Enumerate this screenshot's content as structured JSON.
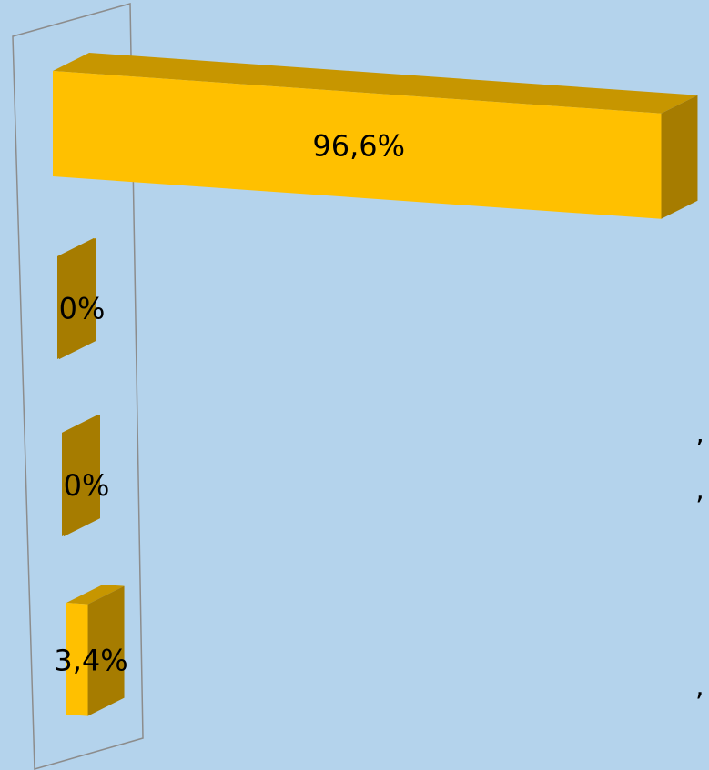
{
  "colors": {
    "background": "#b4d3ec",
    "bar_front": "#ffc000",
    "bar_top": "#c79600",
    "bar_side": "#a67c00",
    "axis_frame": "#8c8c8c",
    "text": "#000000"
  },
  "cut_off_labels": [
    "’",
    "‚",
    ","
  ],
  "chart_data": {
    "type": "bar",
    "orientation": "horizontal",
    "style": "3d",
    "title": "",
    "xlabel": "",
    "ylabel": "",
    "categories": [
      "",
      "",
      "",
      ""
    ],
    "values": [
      96.6,
      0,
      0,
      3.4
    ],
    "data_labels": [
      "96,6%",
      "0%",
      "0%",
      "3,4%"
    ],
    "xlim": [
      0,
      100
    ],
    "grid": false,
    "legend": "none"
  }
}
